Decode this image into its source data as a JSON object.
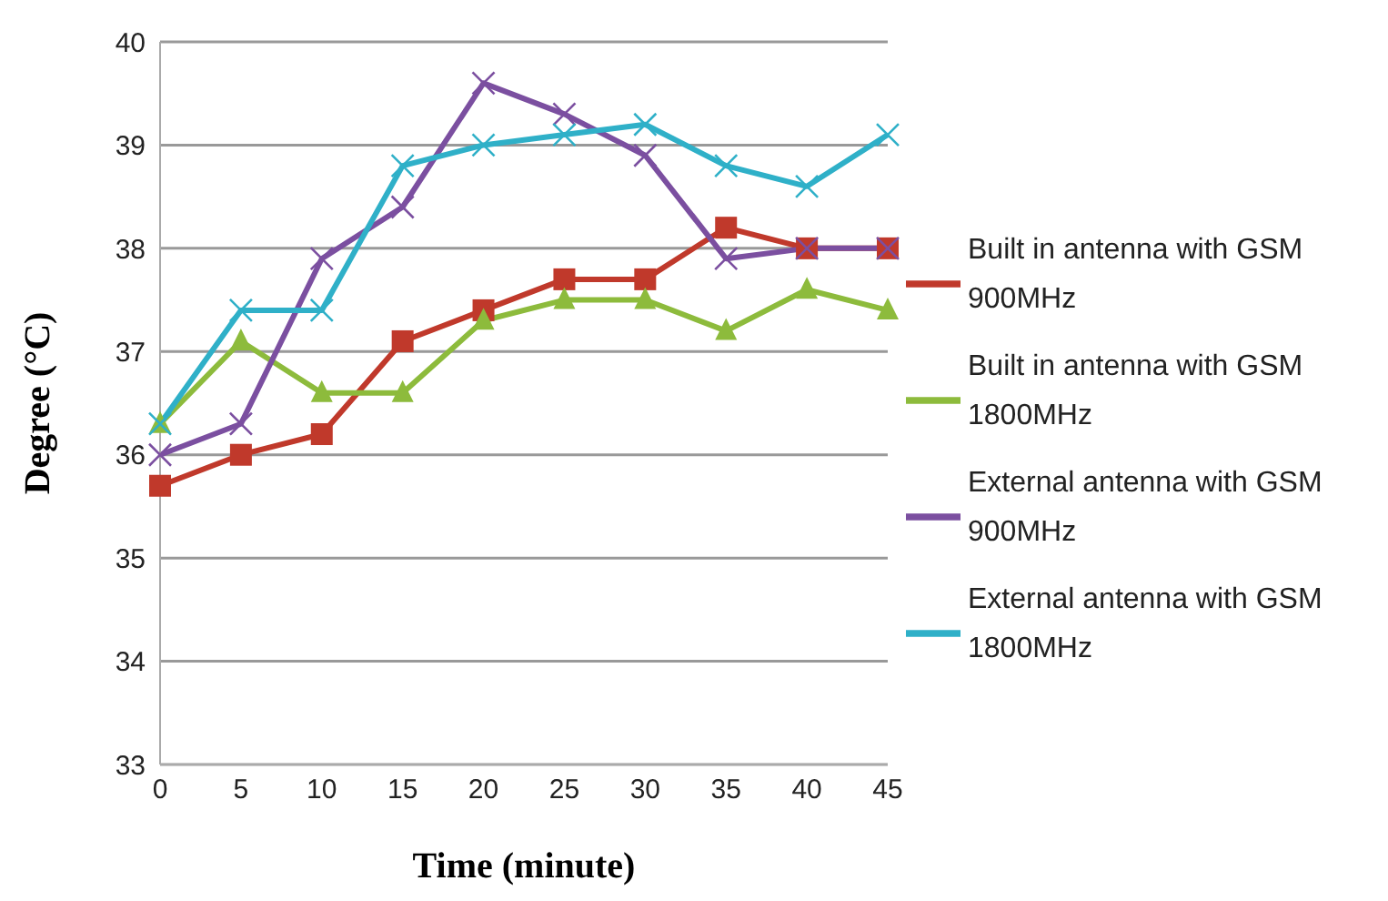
{
  "chart_data": {
    "type": "line",
    "xlabel": "Time (minute)",
    "ylabel": "Degree (°C)",
    "categories": [
      "0",
      "5",
      "10",
      "15",
      "20",
      "25",
      "30",
      "35",
      "40",
      "45"
    ],
    "series": [
      {
        "name": "Built in antenna with GSM 900MHz",
        "color": "#c0392b",
        "marker": "square",
        "values": [
          35.7,
          36.0,
          36.2,
          37.1,
          37.4,
          37.7,
          37.7,
          38.2,
          38.0,
          38.0
        ]
      },
      {
        "name": "Built in antenna with GSM 1800MHz",
        "color": "#8dbb3c",
        "marker": "triangle",
        "values": [
          36.3,
          37.1,
          36.6,
          36.6,
          37.3,
          37.5,
          37.5,
          37.2,
          37.6,
          37.4
        ]
      },
      {
        "name": "External antenna with GSM 900MHz",
        "color": "#7b4fa0",
        "marker": "cross",
        "values": [
          36.0,
          36.3,
          37.9,
          38.4,
          39.6,
          39.3,
          38.9,
          37.9,
          38.0,
          38.0
        ]
      },
      {
        "name": "External antenna with GSM 1800MHz",
        "color": "#2fb0c8",
        "marker": "cross",
        "values": [
          36.3,
          37.4,
          37.4,
          38.8,
          39.0,
          39.1,
          39.2,
          38.8,
          38.6,
          39.1
        ]
      }
    ],
    "ylim": [
      33,
      40
    ],
    "yticks": [
      33,
      34,
      35,
      36,
      37,
      38,
      39,
      40
    ],
    "grid": "y",
    "legend": "right"
  }
}
